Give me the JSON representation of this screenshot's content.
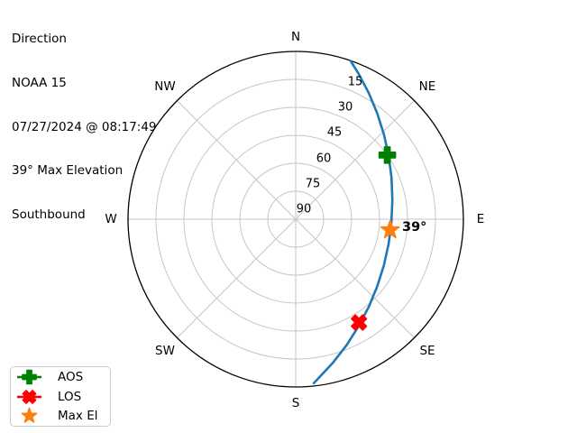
{
  "header": {
    "lines": [
      "Direction",
      "NOAA 15",
      "07/27/2024 @ 08:17:49",
      "39° Max Elevation",
      "Southbound"
    ]
  },
  "chart_data": {
    "type": "line",
    "projection": "polar-azimuth-elevation",
    "title": "Direction",
    "compass_labels": [
      "N",
      "NE",
      "E",
      "SE",
      "S",
      "SW",
      "W",
      "NW"
    ],
    "elevation_rings_deg": [
      15,
      30,
      45,
      60,
      75,
      90
    ],
    "ring_tick_labels": [
      "15",
      "30",
      "45",
      "60",
      "75",
      "90"
    ],
    "grid_on": true,
    "grid_color": "#c6c6c6",
    "horizon_color": "#000000",
    "track_color": "#1f77b4",
    "max_el_annotation": "39°",
    "track": {
      "name": "NOAA 15 pass",
      "azimuth_deg": [
        19.2,
        23.3,
        30.1,
        37.6,
        46.2,
        55.8,
        66.7,
        78.7,
        91.6,
        104.8,
        117.6,
        129.5,
        140.2,
        149.6,
        157.9,
        165.3,
        173.7
      ],
      "elevation_deg": [
        0.2,
        4.9,
        11.8,
        18.3,
        24.4,
        29.7,
        34.0,
        37.1,
        38.6,
        38.4,
        36.6,
        33.3,
        28.8,
        23.4,
        17.2,
        10.6,
        1.5
      ]
    },
    "markers": [
      {
        "name": "AOS",
        "marker": "plus",
        "color": "#008000",
        "azimuth_deg": 55.0,
        "elevation_deg": 30.0
      },
      {
        "name": "LOS",
        "marker": "x",
        "color": "#ff0000",
        "azimuth_deg": 148.5,
        "elevation_deg": 25.0
      },
      {
        "name": "Max El",
        "marker": "star",
        "color": "#ff7f0e",
        "azimuth_deg": 96.5,
        "elevation_deg": 39.0
      }
    ]
  },
  "legend": {
    "items": [
      {
        "label": "AOS",
        "marker": "plus",
        "color": "#008000",
        "has_line": true
      },
      {
        "label": "LOS",
        "marker": "x",
        "color": "#ff0000",
        "has_line": true
      },
      {
        "label": "Max El",
        "marker": "star",
        "color": "#ff7f0e",
        "has_line": false
      }
    ]
  }
}
